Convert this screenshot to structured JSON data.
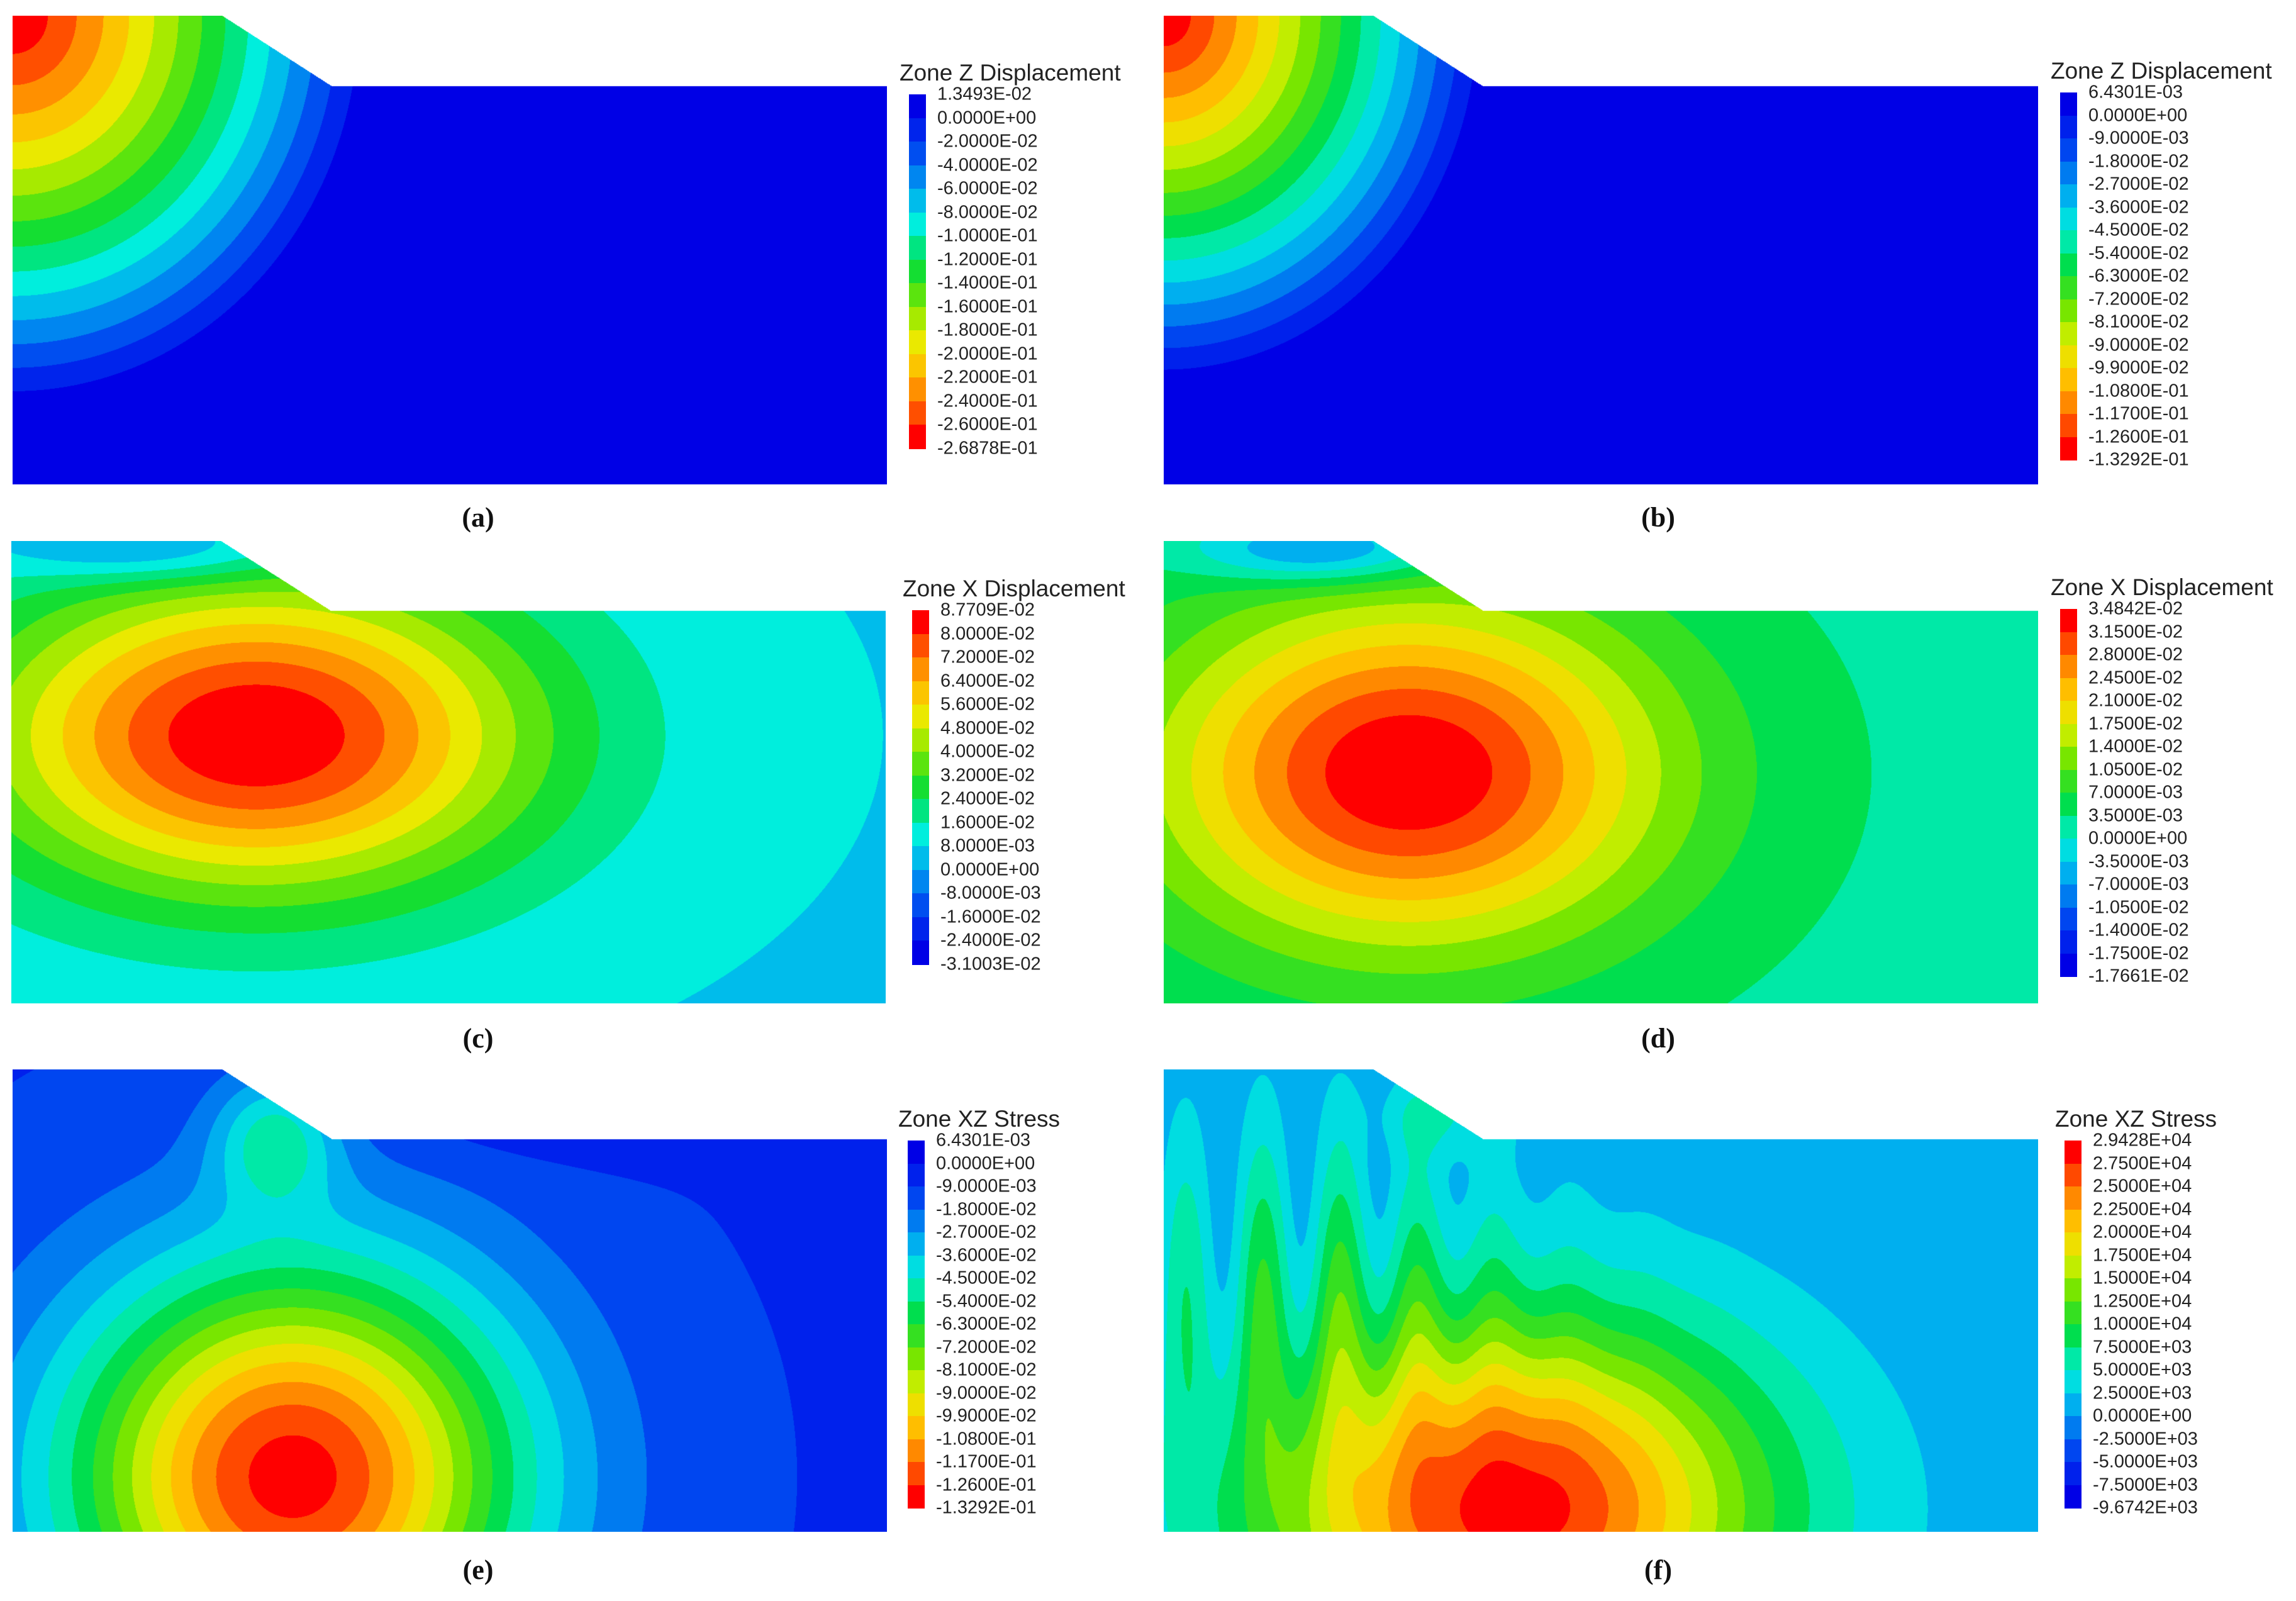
{
  "chart_data": [
    {
      "type": "heatmap",
      "caption": "(a)",
      "legend_title": "Zone Z Displacement",
      "legend_values": [
        "1.3493E-02",
        "0.0000E+00",
        "-2.0000E-02",
        "-4.0000E-02",
        "-6.0000E-02",
        "-8.0000E-02",
        "-1.0000E-01",
        "-1.2000E-01",
        "-1.4000E-01",
        "-1.6000E-01",
        "-1.8000E-01",
        "-2.0000E-01",
        "-2.2000E-01",
        "-2.4000E-01",
        "-2.6000E-01",
        "-2.6878E-01"
      ],
      "color_order": "top-blue",
      "field": "z_disp_a"
    },
    {
      "type": "heatmap",
      "caption": "(b)",
      "legend_title": "Zone Z Displacement",
      "legend_values": [
        "6.4301E-03",
        "0.0000E+00",
        "-9.0000E-03",
        "-1.8000E-02",
        "-2.7000E-02",
        "-3.6000E-02",
        "-4.5000E-02",
        "-5.4000E-02",
        "-6.3000E-02",
        "-7.2000E-02",
        "-8.1000E-02",
        "-9.0000E-02",
        "-9.9000E-02",
        "-1.0800E-01",
        "-1.1700E-01",
        "-1.2600E-01",
        "-1.3292E-01"
      ],
      "color_order": "top-blue",
      "field": "z_disp_b"
    },
    {
      "type": "heatmap",
      "caption": "(c)",
      "legend_title": "Zone X Displacement",
      "legend_values": [
        "8.7709E-02",
        "8.0000E-02",
        "7.2000E-02",
        "6.4000E-02",
        "5.6000E-02",
        "4.8000E-02",
        "4.0000E-02",
        "3.2000E-02",
        "2.4000E-02",
        "1.6000E-02",
        "8.0000E-03",
        "0.0000E+00",
        "-8.0000E-03",
        "-1.6000E-02",
        "-2.4000E-02",
        "-3.1003E-02"
      ],
      "color_order": "top-red",
      "field": "x_disp_c"
    },
    {
      "type": "heatmap",
      "caption": "(d)",
      "legend_title": "Zone X Displacement",
      "legend_values": [
        "3.4842E-02",
        "3.1500E-02",
        "2.8000E-02",
        "2.4500E-02",
        "2.1000E-02",
        "1.7500E-02",
        "1.4000E-02",
        "1.0500E-02",
        "7.0000E-03",
        "3.5000E-03",
        "0.0000E+00",
        "-3.5000E-03",
        "-7.0000E-03",
        "-1.0500E-02",
        "-1.4000E-02",
        "-1.7500E-02",
        "-1.7661E-02"
      ],
      "color_order": "top-red",
      "field": "x_disp_d"
    },
    {
      "type": "heatmap",
      "caption": "(e)",
      "legend_title": "Zone XZ Stress",
      "legend_values": [
        "6.4301E-03",
        "0.0000E+00",
        "-9.0000E-03",
        "-1.8000E-02",
        "-2.7000E-02",
        "-3.6000E-02",
        "-4.5000E-02",
        "-5.4000E-02",
        "-6.3000E-02",
        "-7.2000E-02",
        "-8.1000E-02",
        "-9.0000E-02",
        "-9.9000E-02",
        "-1.0800E-01",
        "-1.1700E-01",
        "-1.2600E-01",
        "-1.3292E-01"
      ],
      "color_order": "top-blue",
      "field": "xz_stress_e"
    },
    {
      "type": "heatmap",
      "caption": "(f)",
      "legend_title": "Zone XZ Stress",
      "legend_values": [
        "2.9428E+04",
        "2.7500E+04",
        "2.5000E+04",
        "2.2500E+04",
        "2.0000E+04",
        "1.7500E+04",
        "1.5000E+04",
        "1.2500E+04",
        "1.0000E+04",
        "7.5000E+03",
        "5.0000E+03",
        "2.5000E+03",
        "0.0000E+00",
        "-2.5000E+03",
        "-5.0000E+03",
        "-7.5000E+03",
        "-9.6742E+03"
      ],
      "color_order": "top-red",
      "field": "xz_stress_f"
    }
  ]
}
